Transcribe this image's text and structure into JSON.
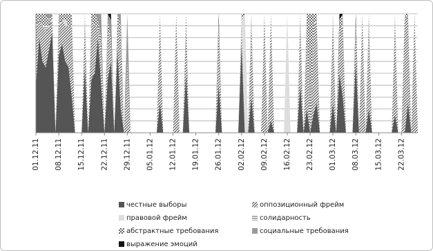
{
  "chart_data": {
    "type": "stacked-area",
    "ylim": [
      0,
      100
    ],
    "ygrid": [
      0,
      10,
      20,
      30,
      40,
      50,
      60,
      70,
      80,
      90,
      100
    ],
    "categories": [
      "01.12.11",
      null,
      null,
      null,
      null,
      null,
      null,
      "08.12.11",
      null,
      null,
      null,
      null,
      null,
      null,
      "15.12.11",
      null,
      null,
      null,
      null,
      null,
      null,
      "22.12.11",
      null,
      null,
      null,
      null,
      null,
      null,
      "29.12.11",
      null,
      null,
      null,
      null,
      null,
      null,
      "05.01.12",
      null,
      null,
      null,
      null,
      null,
      null,
      "12.01.12",
      null,
      null,
      null,
      null,
      null,
      null,
      "19.01.12",
      null,
      null,
      null,
      null,
      null,
      null,
      "26.01.12",
      null,
      null,
      null,
      null,
      null,
      null,
      "02.02.12",
      null,
      null,
      null,
      null,
      null,
      null,
      "09.02.12",
      null,
      null,
      null,
      null,
      null,
      null,
      "16.02.12",
      null,
      null,
      null,
      null,
      null,
      null,
      "23.02.12",
      null,
      null,
      null,
      null,
      null,
      null,
      "01.03.12",
      null,
      null,
      null,
      null,
      null,
      null,
      "08.03.12",
      null,
      null,
      null,
      null,
      null,
      null,
      "15.03.12",
      null,
      null,
      null,
      null,
      null,
      null,
      "22.03.12",
      null,
      null,
      null,
      null,
      null
    ],
    "series": [
      {
        "name": "честные выборы",
        "color": "#555555",
        "pattern": "solid",
        "values": [
          40,
          80,
          60,
          55,
          70,
          85,
          0,
          65,
          75,
          60,
          55,
          30,
          0,
          0,
          0,
          55,
          0,
          45,
          50,
          80,
          40,
          0,
          45,
          60,
          0,
          70,
          20,
          0,
          0,
          0,
          0,
          0,
          0,
          0,
          0,
          0,
          0,
          0,
          25,
          0,
          0,
          0,
          0,
          0,
          0,
          0,
          50,
          0,
          0,
          0,
          0,
          0,
          0,
          0,
          0,
          0,
          40,
          0,
          0,
          0,
          0,
          0,
          0,
          75,
          0,
          0,
          30,
          0,
          0,
          0,
          0,
          0,
          10,
          0,
          0,
          0,
          0,
          0,
          0,
          0,
          0,
          40,
          0,
          20,
          0,
          15,
          25,
          0,
          0,
          0,
          0,
          25,
          0,
          50,
          30,
          0,
          0,
          0,
          60,
          0,
          0,
          0,
          20,
          0,
          0,
          0,
          0,
          0,
          0,
          0,
          15,
          0,
          0,
          0,
          25,
          0,
          0,
          0
        ]
      },
      {
        "name": "оппозиционный фрейм",
        "color": "#555555",
        "pattern": "diagonal",
        "values": [
          50,
          15,
          30,
          30,
          20,
          10,
          0,
          25,
          20,
          30,
          35,
          60,
          0,
          0,
          0,
          40,
          0,
          50,
          40,
          10,
          30,
          0,
          40,
          20,
          0,
          20,
          60,
          0,
          60,
          0,
          0,
          0,
          0,
          0,
          0,
          0,
          0,
          0,
          75,
          0,
          0,
          0,
          0,
          100,
          0,
          0,
          40,
          0,
          0,
          0,
          0,
          0,
          0,
          0,
          0,
          0,
          50,
          0,
          0,
          0,
          0,
          0,
          0,
          15,
          0,
          0,
          60,
          0,
          0,
          0,
          100,
          0,
          90,
          0,
          0,
          0,
          0,
          0,
          0,
          0,
          0,
          55,
          0,
          70,
          0,
          75,
          70,
          0,
          0,
          0,
          0,
          70,
          0,
          40,
          60,
          0,
          0,
          0,
          30,
          0,
          100,
          0,
          70,
          0,
          0,
          0,
          0,
          0,
          0,
          0,
          80,
          0,
          0,
          100,
          70,
          0,
          100,
          0
        ]
      },
      {
        "name": "правовой фрейм",
        "color": "#dddddd",
        "pattern": "solid",
        "values": [
          0,
          0,
          0,
          0,
          0,
          0,
          0,
          0,
          0,
          5,
          0,
          0,
          0,
          0,
          0,
          0,
          0,
          0,
          0,
          0,
          0,
          0,
          0,
          0,
          0,
          0,
          0,
          0,
          0,
          0,
          0,
          0,
          0,
          0,
          0,
          0,
          0,
          0,
          0,
          0,
          0,
          0,
          0,
          0,
          0,
          0,
          0,
          0,
          0,
          0,
          0,
          0,
          0,
          0,
          0,
          0,
          0,
          0,
          0,
          0,
          0,
          0,
          0,
          5,
          100,
          0,
          0,
          0,
          0,
          0,
          0,
          0,
          0,
          0,
          0,
          0,
          0,
          100,
          0,
          0,
          0,
          0,
          0,
          0,
          0,
          0,
          0,
          0,
          0,
          0,
          0,
          0,
          0,
          0,
          0,
          0,
          0,
          0,
          0,
          0,
          0,
          0,
          0,
          0,
          0,
          0,
          0,
          0,
          0,
          0,
          0,
          0,
          0,
          0,
          0,
          0,
          0,
          0
        ]
      },
      {
        "name": "солидарность",
        "color": "#555555",
        "pattern": "horizontal",
        "values": [
          0,
          0,
          0,
          5,
          0,
          0,
          0,
          0,
          0,
          0,
          0,
          0,
          0,
          0,
          0,
          0,
          0,
          0,
          0,
          0,
          0,
          0,
          0,
          0,
          0,
          0,
          0,
          0,
          0,
          0,
          0,
          0,
          0,
          0,
          0,
          0,
          0,
          0,
          0,
          0,
          0,
          0,
          0,
          0,
          0,
          0,
          0,
          0,
          0,
          0,
          0,
          0,
          0,
          0,
          0,
          0,
          0,
          0,
          0,
          0,
          0,
          0,
          0,
          0,
          0,
          0,
          0,
          0,
          0,
          0,
          0,
          0,
          0,
          0,
          0,
          0,
          0,
          0,
          0,
          0,
          0,
          0,
          0,
          0,
          0,
          0,
          0,
          0,
          0,
          0,
          0,
          0,
          0,
          0,
          0,
          0,
          0,
          0,
          0,
          0,
          0,
          0,
          0,
          0,
          0,
          0,
          0,
          0,
          0,
          0,
          0,
          0,
          0,
          0,
          0,
          0,
          0,
          0
        ]
      },
      {
        "name": "абстрактные требования",
        "color": "#666666",
        "pattern": "checker",
        "values": [
          10,
          5,
          10,
          10,
          5,
          5,
          0,
          10,
          5,
          5,
          10,
          10,
          0,
          0,
          0,
          5,
          0,
          5,
          10,
          5,
          10,
          0,
          10,
          0,
          0,
          10,
          10,
          0,
          0,
          0,
          0,
          0,
          0,
          0,
          0,
          0,
          0,
          0,
          0,
          0,
          0,
          0,
          0,
          0,
          0,
          0,
          10,
          0,
          0,
          0,
          0,
          0,
          0,
          0,
          0,
          0,
          5,
          0,
          0,
          0,
          0,
          0,
          0,
          5,
          0,
          0,
          10,
          0,
          0,
          0,
          0,
          0,
          0,
          0,
          0,
          0,
          0,
          0,
          0,
          0,
          0,
          5,
          0,
          10,
          100,
          10,
          5,
          0,
          0,
          0,
          0,
          5,
          0,
          5,
          10,
          0,
          0,
          0,
          5,
          0,
          0,
          0,
          10,
          0,
          0,
          0,
          0,
          0,
          0,
          0,
          5,
          0,
          0,
          0,
          5,
          0,
          0,
          0
        ]
      },
      {
        "name": "социальные требования",
        "color": "#999999",
        "pattern": "solid",
        "values": [
          0,
          0,
          0,
          0,
          5,
          0,
          0,
          0,
          0,
          0,
          0,
          0,
          0,
          0,
          0,
          0,
          0,
          0,
          0,
          5,
          20,
          0,
          5,
          15,
          0,
          0,
          10,
          0,
          40,
          0,
          0,
          0,
          0,
          0,
          0,
          0,
          0,
          0,
          0,
          0,
          0,
          0,
          0,
          0,
          0,
          0,
          0,
          0,
          0,
          0,
          0,
          0,
          0,
          0,
          0,
          0,
          0,
          0,
          0,
          0,
          0,
          0,
          0,
          0,
          0,
          0,
          0,
          0,
          0,
          0,
          0,
          0,
          0,
          0,
          0,
          0,
          0,
          0,
          0,
          0,
          0,
          0,
          0,
          0,
          0,
          0,
          0,
          0,
          0,
          0,
          0,
          0,
          0,
          0,
          0,
          0,
          0,
          0,
          0,
          0,
          0,
          0,
          0,
          0,
          0,
          0,
          0,
          0,
          0,
          0,
          0,
          0,
          0,
          0,
          0,
          0,
          0,
          0
        ]
      },
      {
        "name": "выражение эмоций",
        "color": "#111111",
        "pattern": "solid",
        "values": [
          0,
          0,
          0,
          0,
          0,
          0,
          0,
          0,
          0,
          0,
          0,
          0,
          0,
          0,
          0,
          0,
          0,
          0,
          0,
          0,
          0,
          0,
          0,
          5,
          0,
          0,
          0,
          0,
          0,
          0,
          0,
          0,
          0,
          0,
          0,
          0,
          0,
          0,
          0,
          0,
          0,
          0,
          0,
          0,
          0,
          0,
          0,
          0,
          0,
          0,
          0,
          0,
          0,
          0,
          0,
          0,
          5,
          0,
          0,
          0,
          0,
          0,
          0,
          0,
          0,
          0,
          0,
          0,
          0,
          0,
          0,
          0,
          0,
          0,
          0,
          0,
          0,
          0,
          0,
          0,
          0,
          0,
          0,
          0,
          0,
          0,
          0,
          0,
          0,
          0,
          0,
          0,
          0,
          5,
          0,
          0,
          0,
          0,
          5,
          0,
          0,
          0,
          0,
          0,
          0,
          0,
          0,
          0,
          0,
          0,
          0,
          0,
          0,
          0,
          0,
          0,
          0,
          0
        ]
      }
    ]
  }
}
